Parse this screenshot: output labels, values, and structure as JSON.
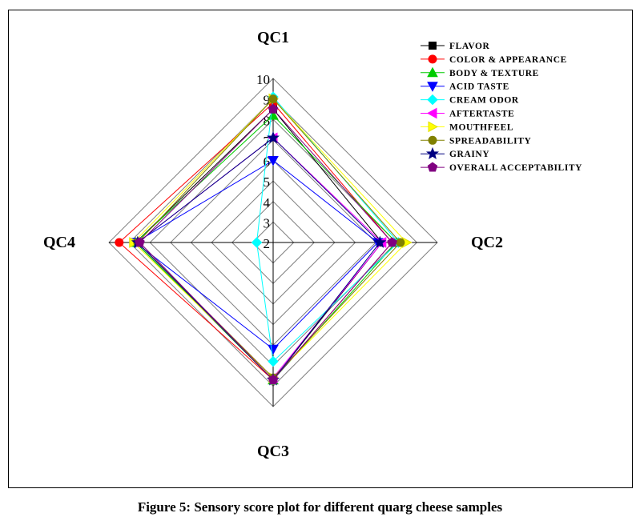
{
  "caption": "Figure 5: Sensory score plot for different quarg cheese samples",
  "chart_data": {
    "type": "radar",
    "axes": [
      "QC1",
      "QC2",
      "QC3",
      "QC4"
    ],
    "rlim": [
      2,
      10
    ],
    "ticks": [
      2,
      3,
      4,
      5,
      6,
      7,
      8,
      9,
      10
    ],
    "grid": true,
    "legend_position": "top-right",
    "series": [
      {
        "name": "FLAVOR",
        "values": [
          8.5,
          7.3,
          8.7,
          8.7
        ],
        "color": "#000000",
        "marker": "square"
      },
      {
        "name": "COLOR & APPEARANCE",
        "values": [
          8.8,
          7.8,
          8.7,
          9.5
        ],
        "color": "#ff0000",
        "marker": "circle"
      },
      {
        "name": "BODY & TEXTURE",
        "values": [
          8.2,
          8.0,
          8.7,
          8.7
        ],
        "color": "#00cc00",
        "marker": "triangle-up"
      },
      {
        "name": "ACID TASTE",
        "values": [
          6.0,
          7.1,
          7.2,
          8.7
        ],
        "color": "#0000ff",
        "marker": "triangle-down"
      },
      {
        "name": "CREAM ODOR",
        "values": [
          9.1,
          8.1,
          7.8,
          2.8
        ],
        "color": "#00ffff",
        "marker": "diamond"
      },
      {
        "name": "AFTERTASTE",
        "values": [
          7.1,
          7.3,
          8.6,
          8.6
        ],
        "color": "#ff00ff",
        "marker": "triangle-left"
      },
      {
        "name": "MOUTHFEEL",
        "values": [
          9.0,
          8.5,
          8.6,
          8.8
        ],
        "color": "#ffff00",
        "marker": "triangle-right"
      },
      {
        "name": "SPREADABILITY",
        "values": [
          9.0,
          8.2,
          8.6,
          8.6
        ],
        "color": "#808000",
        "marker": "circle"
      },
      {
        "name": "GRAINY",
        "values": [
          7.1,
          7.2,
          8.7,
          8.6
        ],
        "color": "#000080",
        "marker": "star"
      },
      {
        "name": "OVERALL ACCEPTABILITY",
        "values": [
          8.5,
          7.8,
          8.7,
          8.5
        ],
        "color": "#800080",
        "marker": "pentagon"
      }
    ]
  }
}
